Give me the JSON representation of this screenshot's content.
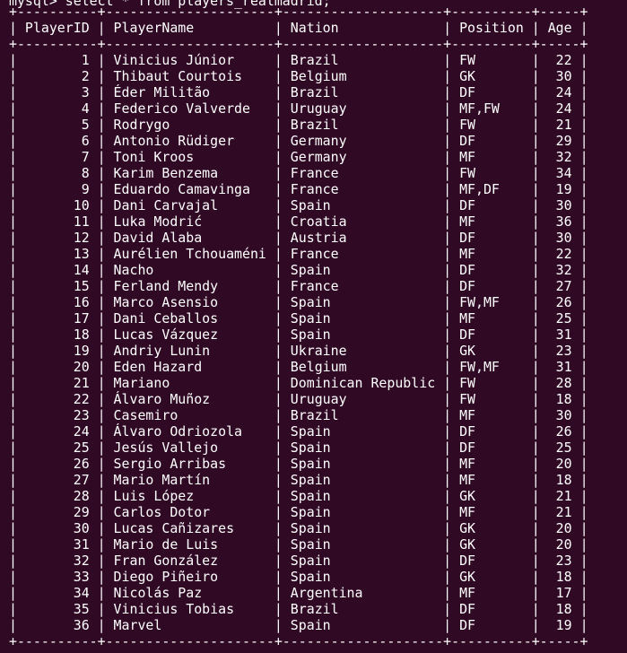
{
  "terminal": {
    "top_partial_text": "mysql> select * from players_realmadrid;"
  },
  "table": {
    "columns": [
      "PlayerID",
      "PlayerName",
      "Nation",
      "Position",
      "Age"
    ],
    "rows": [
      {
        "id": 1,
        "name": "Vinicius Júnior",
        "nation": "Brazil",
        "position": "FW",
        "age": 22
      },
      {
        "id": 2,
        "name": "Thibaut Courtois",
        "nation": "Belgium",
        "position": "GK",
        "age": 30
      },
      {
        "id": 3,
        "name": "Éder Militão",
        "nation": "Brazil",
        "position": "DF",
        "age": 24
      },
      {
        "id": 4,
        "name": "Federico Valverde",
        "nation": "Uruguay",
        "position": "MF,FW",
        "age": 24
      },
      {
        "id": 5,
        "name": "Rodrygo",
        "nation": "Brazil",
        "position": "FW",
        "age": 21
      },
      {
        "id": 6,
        "name": "Antonio Rüdiger",
        "nation": "Germany",
        "position": "DF",
        "age": 29
      },
      {
        "id": 7,
        "name": "Toni Kroos",
        "nation": "Germany",
        "position": "MF",
        "age": 32
      },
      {
        "id": 8,
        "name": "Karim Benzema",
        "nation": "France",
        "position": "FW",
        "age": 34
      },
      {
        "id": 9,
        "name": "Eduardo Camavinga",
        "nation": "France",
        "position": "MF,DF",
        "age": 19
      },
      {
        "id": 10,
        "name": "Dani Carvajal",
        "nation": "Spain",
        "position": "DF",
        "age": 30
      },
      {
        "id": 11,
        "name": "Luka Modrić",
        "nation": "Croatia",
        "position": "MF",
        "age": 36
      },
      {
        "id": 12,
        "name": "David Alaba",
        "nation": "Austria",
        "position": "DF",
        "age": 30
      },
      {
        "id": 13,
        "name": "Aurélien Tchouaméni",
        "nation": "France",
        "position": "MF",
        "age": 22
      },
      {
        "id": 14,
        "name": "Nacho",
        "nation": "Spain",
        "position": "DF",
        "age": 32
      },
      {
        "id": 15,
        "name": "Ferland Mendy",
        "nation": "France",
        "position": "DF",
        "age": 27
      },
      {
        "id": 16,
        "name": "Marco Asensio",
        "nation": "Spain",
        "position": "FW,MF",
        "age": 26
      },
      {
        "id": 17,
        "name": "Dani Ceballos",
        "nation": "Spain",
        "position": "MF",
        "age": 25
      },
      {
        "id": 18,
        "name": "Lucas Vázquez",
        "nation": "Spain",
        "position": "DF",
        "age": 31
      },
      {
        "id": 19,
        "name": "Andriy Lunin",
        "nation": "Ukraine",
        "position": "GK",
        "age": 23
      },
      {
        "id": 20,
        "name": "Eden Hazard",
        "nation": "Belgium",
        "position": "FW,MF",
        "age": 31
      },
      {
        "id": 21,
        "name": "Mariano",
        "nation": "Dominican Republic",
        "position": "FW",
        "age": 28
      },
      {
        "id": 22,
        "name": "Álvaro Muñoz",
        "nation": "Uruguay",
        "position": "FW",
        "age": 18
      },
      {
        "id": 23,
        "name": "Casemiro",
        "nation": "Brazil",
        "position": "MF",
        "age": 30
      },
      {
        "id": 24,
        "name": "Álvaro Odriozola",
        "nation": "Spain",
        "position": "DF",
        "age": 26
      },
      {
        "id": 25,
        "name": "Jesús Vallejo",
        "nation": "Spain",
        "position": "DF",
        "age": 25
      },
      {
        "id": 26,
        "name": "Sergio Arribas",
        "nation": "Spain",
        "position": "MF",
        "age": 20
      },
      {
        "id": 27,
        "name": "Mario Martín",
        "nation": "Spain",
        "position": "MF",
        "age": 18
      },
      {
        "id": 28,
        "name": "Luis López",
        "nation": "Spain",
        "position": "GK",
        "age": 21
      },
      {
        "id": 29,
        "name": "Carlos Dotor",
        "nation": "Spain",
        "position": "MF",
        "age": 21
      },
      {
        "id": 30,
        "name": "Lucas Cañizares",
        "nation": "Spain",
        "position": "GK",
        "age": 20
      },
      {
        "id": 31,
        "name": "Mario de Luis",
        "nation": "Spain",
        "position": "GK",
        "age": 20
      },
      {
        "id": 32,
        "name": "Fran González",
        "nation": "Spain",
        "position": "DF",
        "age": 23
      },
      {
        "id": 33,
        "name": "Diego Piñeiro",
        "nation": "Spain",
        "position": "GK",
        "age": 18
      },
      {
        "id": 34,
        "name": "Nicolás Paz",
        "nation": "Argentina",
        "position": "MF",
        "age": 17
      },
      {
        "id": 35,
        "name": "Vinicius Tobias",
        "nation": "Brazil",
        "position": "DF",
        "age": 18
      },
      {
        "id": 36,
        "name": "Marvel",
        "nation": "Spain",
        "position": "DF",
        "age": 19
      }
    ]
  },
  "colors": {
    "background": "#300a24",
    "text": "#ffffff"
  }
}
